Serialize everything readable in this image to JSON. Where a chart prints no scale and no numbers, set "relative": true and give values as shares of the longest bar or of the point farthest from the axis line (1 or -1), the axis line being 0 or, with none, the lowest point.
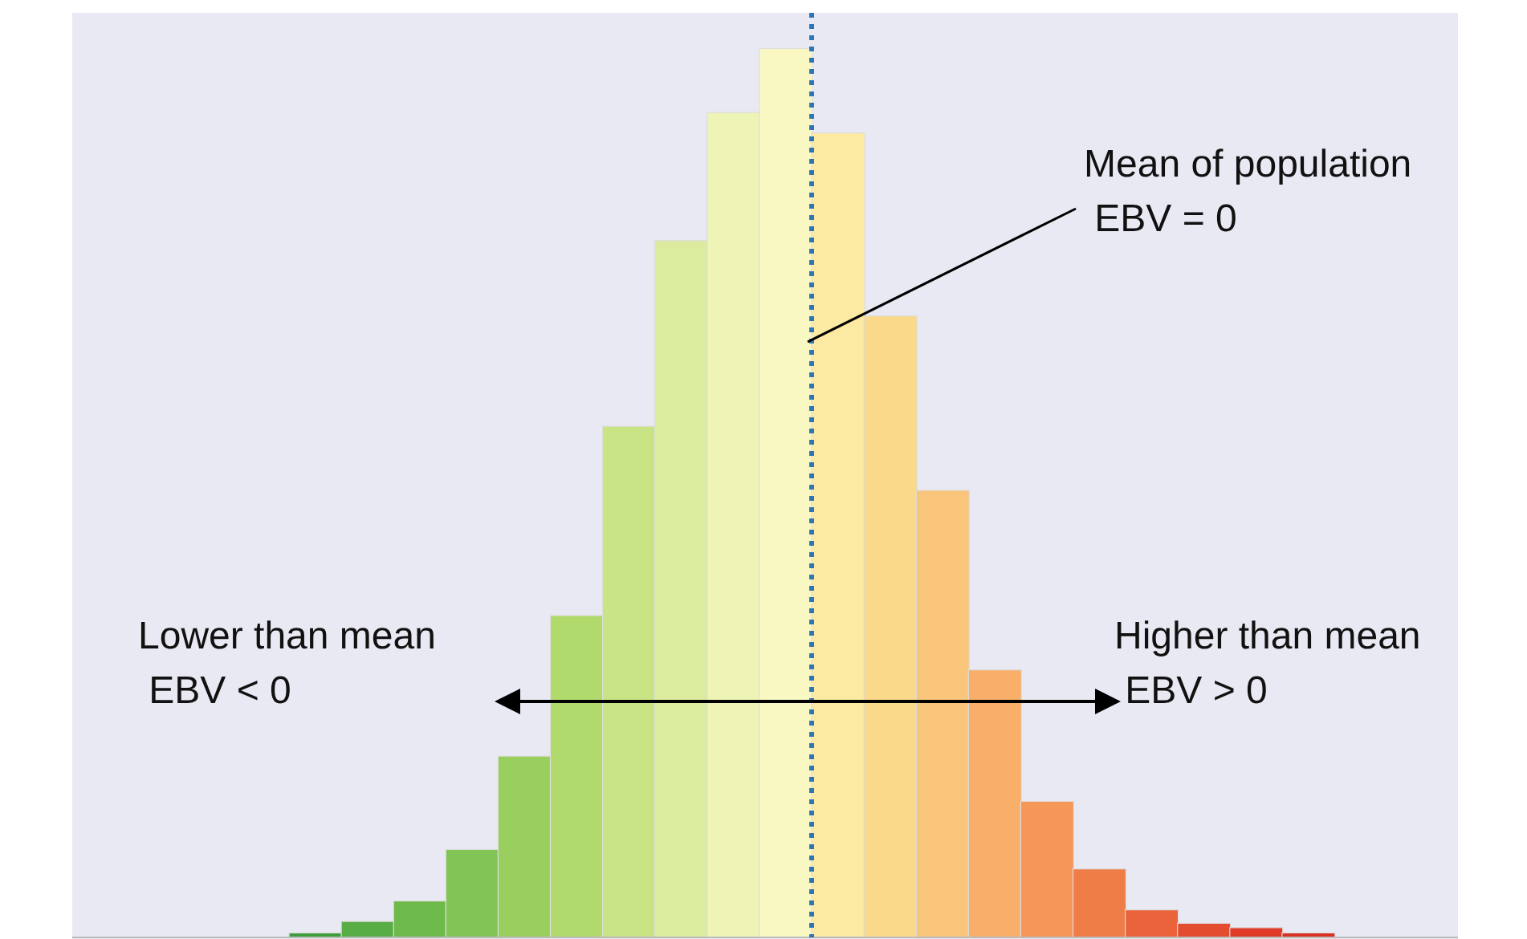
{
  "chart_data": {
    "type": "bar",
    "relative": true,
    "tick_labels": false,
    "categories": [
      null,
      null,
      null,
      null,
      null,
      null,
      null,
      null,
      null,
      null,
      null,
      null,
      null,
      null,
      null,
      null,
      null,
      null,
      null,
      null
    ],
    "values": [
      0.005,
      0.018,
      0.041,
      0.099,
      0.204,
      0.362,
      0.575,
      0.784,
      0.928,
      1,
      0.905,
      0.699,
      0.503,
      0.301,
      0.153,
      0.077,
      0.031,
      0.016,
      0.011,
      0.005
    ],
    "colors": [
      "#3f9e3c",
      "#58ad44",
      "#6dba4b",
      "#82c456",
      "#99cf5f",
      "#b1da6c",
      "#c8e485",
      "#dcec9e",
      "#eef4b5",
      "#f9f8c3",
      "#fceaa3",
      "#fbd98b",
      "#f9c57a",
      "#f7af69",
      "#f49758",
      "#ef7d47",
      "#ea633a",
      "#e44c30",
      "#df3b28",
      "#d93123"
    ],
    "ref_lines": [
      {
        "axis": "x",
        "color": "#2e75b6",
        "line_style": "dotted"
      }
    ],
    "annotations": [
      "Mean of population\n EBV = 0",
      "Lower than mean\n EBV < 0",
      "Higher than mean\n EBV > 0"
    ]
  }
}
